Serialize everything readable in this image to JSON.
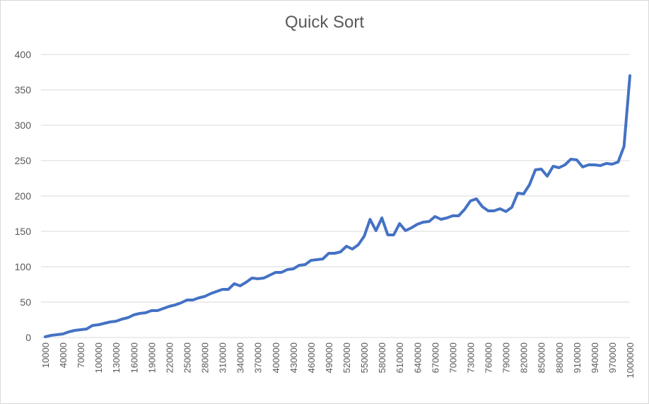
{
  "chart_data": {
    "type": "line",
    "title": "Quick Sort",
    "xlabel": "",
    "ylabel": "",
    "ylim": [
      0,
      400
    ],
    "y_ticks": [
      0,
      50,
      100,
      150,
      200,
      250,
      300,
      350,
      400
    ],
    "grid": "horizontal",
    "legend": "none",
    "series_color": "#4472C4",
    "x_tick_labels": [
      "10000",
      "40000",
      "70000",
      "100000",
      "130000",
      "160000",
      "190000",
      "220000",
      "250000",
      "280000",
      "310000",
      "340000",
      "370000",
      "400000",
      "430000",
      "460000",
      "490000",
      "520000",
      "550000",
      "580000",
      "610000",
      "640000",
      "670000",
      "700000",
      "730000",
      "760000",
      "790000",
      "820000",
      "850000",
      "880000",
      "910000",
      "940000",
      "970000",
      "1000000"
    ],
    "x": [
      10000,
      20000,
      30000,
      40000,
      50000,
      60000,
      70000,
      80000,
      90000,
      100000,
      110000,
      120000,
      130000,
      140000,
      150000,
      160000,
      170000,
      180000,
      190000,
      200000,
      210000,
      220000,
      230000,
      240000,
      250000,
      260000,
      270000,
      280000,
      290000,
      300000,
      310000,
      320000,
      330000,
      340000,
      350000,
      360000,
      370000,
      380000,
      390000,
      400000,
      410000,
      420000,
      430000,
      440000,
      450000,
      460000,
      470000,
      480000,
      490000,
      500000,
      510000,
      520000,
      530000,
      540000,
      550000,
      560000,
      570000,
      580000,
      590000,
      600000,
      610000,
      620000,
      630000,
      640000,
      650000,
      660000,
      670000,
      680000,
      690000,
      700000,
      710000,
      720000,
      730000,
      740000,
      750000,
      760000,
      770000,
      780000,
      790000,
      800000,
      810000,
      820000,
      830000,
      840000,
      850000,
      860000,
      870000,
      880000,
      890000,
      900000,
      910000,
      920000,
      930000,
      940000,
      950000,
      960000,
      970000,
      980000,
      990000,
      1000000
    ],
    "values": [
      1,
      3,
      4,
      5,
      8,
      10,
      11,
      12,
      17,
      18,
      20,
      22,
      23,
      26,
      28,
      32,
      34,
      35,
      38,
      38,
      41,
      44,
      46,
      49,
      53,
      53,
      56,
      58,
      62,
      65,
      68,
      68,
      76,
      73,
      78,
      84,
      83,
      84,
      88,
      92,
      92,
      96,
      97,
      102,
      103,
      109,
      110,
      111,
      119,
      119,
      121,
      129,
      125,
      131,
      143,
      167,
      151,
      169,
      145,
      145,
      161,
      151,
      155,
      160,
      163,
      164,
      171,
      167,
      169,
      172,
      172,
      181,
      193,
      196,
      185,
      179,
      179,
      182,
      178,
      184,
      204,
      203,
      216,
      237,
      238,
      228,
      242,
      240,
      244,
      252,
      251,
      241,
      244,
      244,
      243,
      246,
      245,
      248,
      270,
      370
    ]
  }
}
